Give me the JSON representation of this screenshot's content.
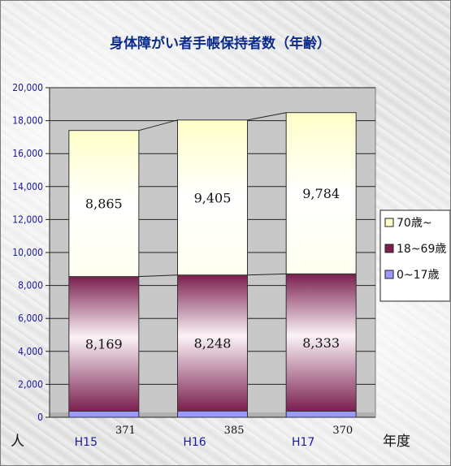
{
  "chart_data": {
    "type": "bar",
    "stacked": true,
    "title": "身体障がい者手帳保持者数（年齢）",
    "categories": [
      "H15",
      "H16",
      "H17"
    ],
    "series": [
      {
        "name": "0~17歳",
        "values": [
          371,
          385,
          370
        ],
        "color": "#9999ff"
      },
      {
        "name": "18~69歳",
        "values": [
          8169,
          8248,
          8333
        ],
        "color": "#7a1f4f"
      },
      {
        "name": "70歳~",
        "values": [
          8865,
          9405,
          9784
        ],
        "color": "#ffffcc"
      }
    ],
    "data_labels": [
      [
        "371",
        "385",
        "370"
      ],
      [
        "8,169",
        "8,248",
        "8,333"
      ],
      [
        "8,865",
        "9,405",
        "9,784"
      ]
    ],
    "yticks": [
      "0",
      "2,000",
      "4,000",
      "6,000",
      "8,000",
      "10,000",
      "12,000",
      "14,000",
      "16,000",
      "18,000",
      "20,000"
    ],
    "ylim": [
      0,
      20000
    ],
    "ylabel": "人",
    "xlabel": "年度",
    "legend_entries": [
      "70歳~",
      "18~69歳",
      "0~17歳"
    ],
    "legend_position": "right",
    "grid": true
  }
}
